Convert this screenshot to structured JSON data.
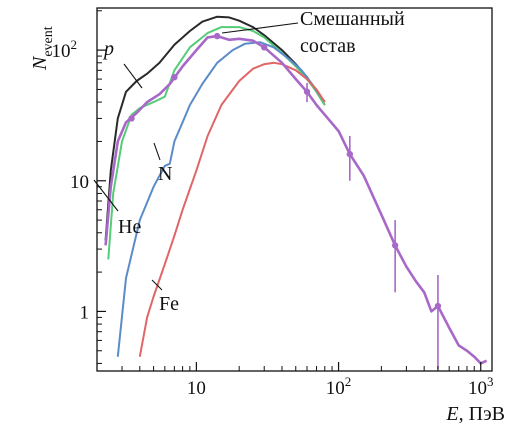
{
  "chart_data": {
    "type": "line",
    "x_scale": "log",
    "y_scale": "log",
    "xlim": [
      2.0,
      1200
    ],
    "ylim": [
      0.35,
      210
    ],
    "xlabel_var": "E",
    "xlabel_unit": ", ПэВ",
    "ylabel_var": "N",
    "ylabel_sub": "event",
    "x_ticks": [
      {
        "value": 10,
        "base": "10",
        "exp": ""
      },
      {
        "value": 100,
        "base": "10",
        "exp": "2"
      },
      {
        "value": 1000,
        "base": "10",
        "exp": "3"
      }
    ],
    "y_ticks": [
      {
        "value": 1,
        "base": "1",
        "exp": ""
      },
      {
        "value": 10,
        "base": "10",
        "exp": ""
      },
      {
        "value": 100,
        "base": "10",
        "exp": "2"
      }
    ],
    "series": [
      {
        "name": "p",
        "color": "#2a2a2a",
        "x": [
          2.3,
          2.5,
          2.8,
          3.2,
          3.8,
          4.5,
          5.5,
          7,
          9,
          11,
          14,
          17,
          20,
          25,
          30,
          40,
          50,
          60,
          70,
          80
        ],
        "y": [
          3.5,
          12,
          30,
          48,
          58,
          66,
          80,
          110,
          140,
          165,
          180,
          178,
          168,
          150,
          130,
          100,
          78,
          62,
          48,
          38
        ]
      },
      {
        "name": "He",
        "color": "#55cc77",
        "x": [
          2.4,
          2.6,
          3.0,
          3.5,
          4,
          5,
          6,
          7,
          9,
          12,
          15,
          20,
          25,
          30,
          40,
          50,
          60,
          70,
          80
        ],
        "y": [
          2.5,
          8,
          20,
          32,
          36,
          40,
          44,
          70,
          105,
          135,
          150,
          150,
          140,
          125,
          95,
          75,
          60,
          48,
          38
        ]
      },
      {
        "name": "N",
        "color": "#5a8cc8",
        "x": [
          2.8,
          3.2,
          4,
          5,
          6,
          6.5,
          7,
          8,
          9,
          11,
          14,
          18,
          22,
          28,
          35,
          45,
          55,
          65,
          80
        ],
        "y": [
          0.45,
          1.8,
          5,
          9,
          13,
          13.5,
          20,
          28,
          38,
          55,
          80,
          100,
          112,
          115,
          105,
          85,
          70,
          55,
          40
        ]
      },
      {
        "name": "Fe",
        "color": "#e06666",
        "x": [
          4,
          4.5,
          5,
          6,
          7,
          8,
          10,
          12,
          15,
          20,
          25,
          30,
          35,
          40,
          50,
          60,
          70,
          80
        ],
        "y": [
          0.45,
          0.9,
          1.3,
          2.3,
          3.8,
          6,
          12,
          22,
          38,
          58,
          72,
          78,
          80,
          78,
          70,
          60,
          50,
          40
        ]
      },
      {
        "name": "Смешанный состав",
        "color": "#a868c8",
        "x": [
          2.3,
          2.5,
          2.8,
          3.2,
          3.8,
          4.5,
          5.5,
          6.5,
          8,
          10,
          12,
          14,
          17,
          20,
          25,
          30,
          40,
          50,
          60,
          70,
          80,
          100,
          120,
          150,
          200,
          250,
          300,
          350,
          400,
          450,
          500,
          600,
          700,
          800,
          900,
          1000,
          1100
        ],
        "y": [
          3.2,
          9,
          20,
          28,
          33,
          40,
          46,
          55,
          75,
          100,
          125,
          128,
          120,
          122,
          118,
          105,
          80,
          60,
          48,
          38,
          32,
          24,
          16,
          11,
          5.5,
          3.2,
          2.2,
          1.7,
          1.4,
          1.0,
          1.1,
          0.75,
          0.55,
          0.5,
          0.45,
          0.4,
          0.42
        ]
      }
    ],
    "annotations": [
      {
        "text": "Смешанный",
        "italic": false
      },
      {
        "text": "состав",
        "italic": false
      },
      {
        "text": "p",
        "italic": true
      },
      {
        "text": "He",
        "italic": false
      },
      {
        "text": "N",
        "italic": false
      },
      {
        "text": "Fe",
        "italic": false
      }
    ],
    "grid": false,
    "legend": "none"
  }
}
